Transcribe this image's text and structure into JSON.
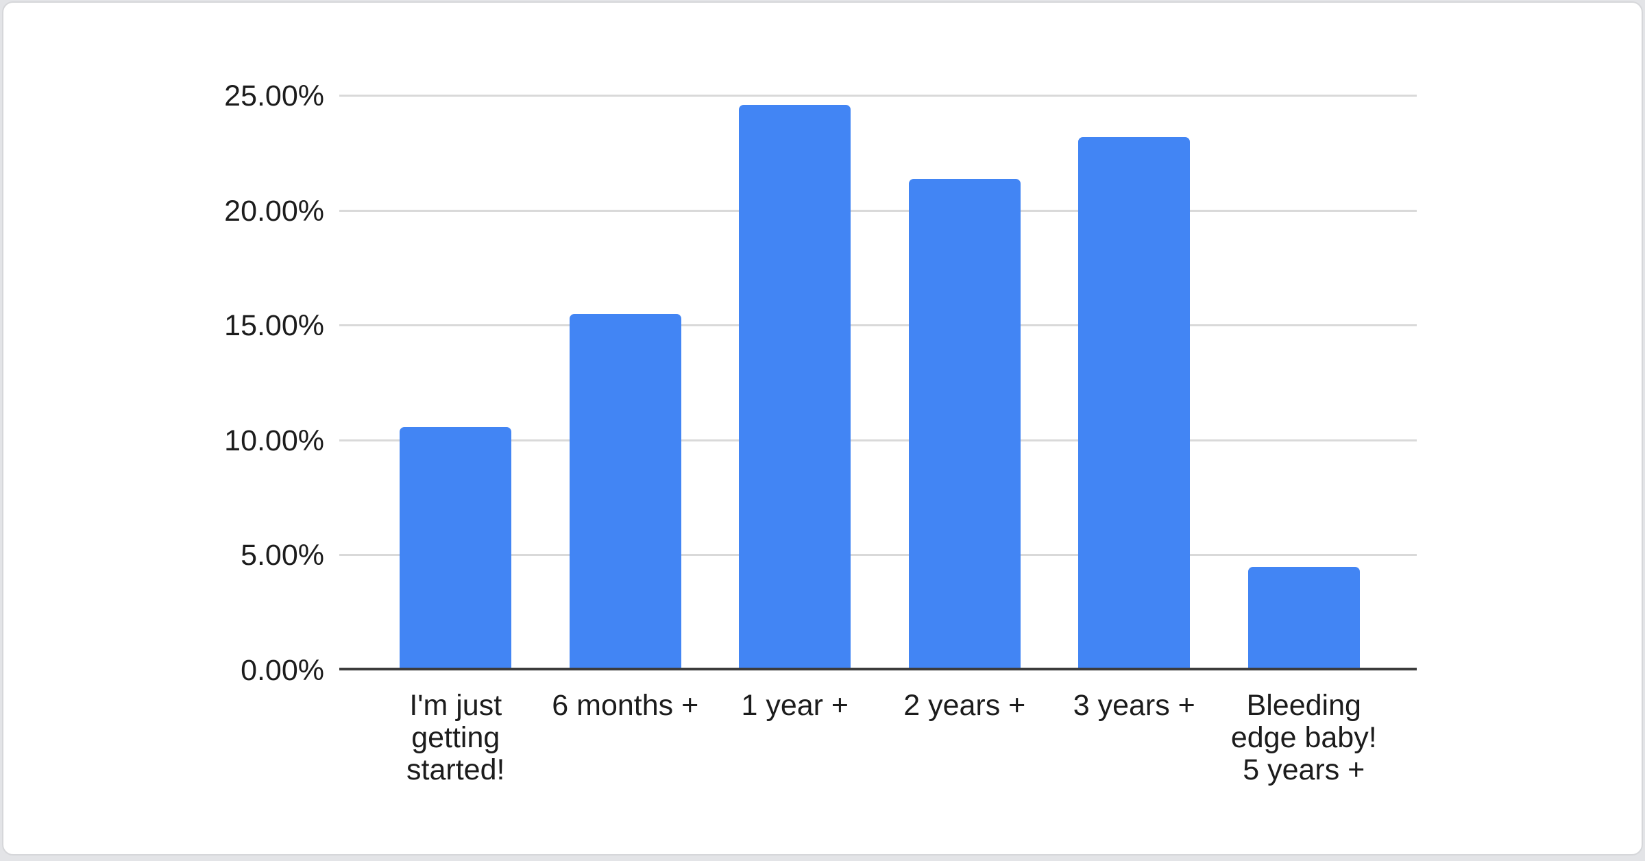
{
  "page": {
    "background": "#e3e4e7",
    "card_background": "#ffffff",
    "card_border": "#d6d7da"
  },
  "chart_data": {
    "type": "bar",
    "title": "",
    "xlabel": "",
    "ylabel": "",
    "categories": [
      "I'm just getting started!",
      "6 months +",
      "1 year +",
      "2 years +",
      "3 years +",
      "Bleeding edge baby! 5 years +"
    ],
    "category_lines": [
      [
        "I'm just",
        "getting",
        "started!"
      ],
      [
        "6 months +"
      ],
      [
        "1 year +"
      ],
      [
        "2 years +"
      ],
      [
        "3 years +"
      ],
      [
        "Bleeding",
        "edge baby!",
        "5 years +"
      ]
    ],
    "values": [
      10.6,
      15.5,
      24.6,
      21.4,
      23.2,
      4.5
    ],
    "unit": "%",
    "ylim": [
      0,
      25
    ],
    "ytick_values": [
      0,
      5,
      10,
      15,
      20,
      25
    ],
    "ytick_labels": [
      "0.00%",
      "5.00%",
      "10.00%",
      "15.00%",
      "20.00%",
      "25.00%"
    ],
    "grid": true,
    "legend": "none",
    "bar_color": "#4285f4",
    "axis_color": "#3c3c3c",
    "gridline_color": "#d9d9d9",
    "text_color": "#1c1c1c"
  }
}
